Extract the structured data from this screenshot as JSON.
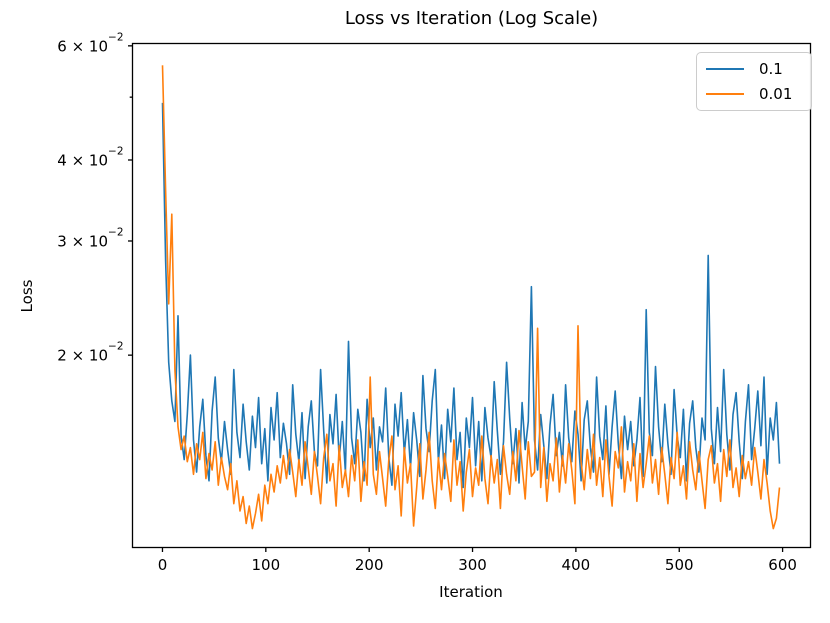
{
  "chart_data": {
    "type": "line",
    "title": "Loss vs Iteration (Log Scale)",
    "xlabel": "Iteration",
    "ylabel": "Loss",
    "yscale": "log",
    "grid": false,
    "legend_position": "upper right",
    "xlim": [
      -29,
      627
    ],
    "ylim": [
      0.0101,
      0.0605
    ],
    "xticks": [
      {
        "value": 0,
        "label": "0"
      },
      {
        "value": 100,
        "label": "100"
      },
      {
        "value": 200,
        "label": "200"
      },
      {
        "value": 300,
        "label": "300"
      },
      {
        "value": 400,
        "label": "400"
      },
      {
        "value": 500,
        "label": "500"
      },
      {
        "value": 600,
        "label": "600"
      }
    ],
    "yticks": [
      {
        "value": 0.06,
        "coeff": "6",
        "base": "10",
        "exp": "−2"
      },
      {
        "value": 0.04,
        "coeff": "4",
        "base": "10",
        "exp": "−2"
      },
      {
        "value": 0.03,
        "coeff": "3",
        "base": "10",
        "exp": "−2"
      },
      {
        "value": 0.02,
        "coeff": "2",
        "base": "10",
        "exp": "−2"
      }
    ],
    "y_minor_ticks": [
      0.05
    ],
    "x_start": 0,
    "x_step": 3,
    "series": [
      {
        "name": "0.1",
        "color": "#1f77b4",
        "values": [
          0.049,
          0.028,
          0.0195,
          0.017,
          0.0158,
          0.023,
          0.015,
          0.0138,
          0.0162,
          0.02,
          0.0148,
          0.0132,
          0.0155,
          0.0171,
          0.014,
          0.0128,
          0.0164,
          0.0185,
          0.0149,
          0.0137,
          0.0158,
          0.0143,
          0.0131,
          0.019,
          0.0152,
          0.0139,
          0.0168,
          0.0147,
          0.0133,
          0.0161,
          0.0144,
          0.0172,
          0.0136,
          0.0154,
          0.0128,
          0.0166,
          0.0148,
          0.0175,
          0.0139,
          0.0157,
          0.0146,
          0.0131,
          0.018,
          0.0151,
          0.0137,
          0.0163,
          0.0129,
          0.0155,
          0.017,
          0.0142,
          0.0135,
          0.019,
          0.0153,
          0.0127,
          0.0162,
          0.0146,
          0.0174,
          0.0138,
          0.0158,
          0.0132,
          0.021,
          0.0149,
          0.0136,
          0.0165,
          0.0152,
          0.0128,
          0.0171,
          0.0144,
          0.016,
          0.0133,
          0.0155,
          0.0147,
          0.0178,
          0.0139,
          0.0126,
          0.0168,
          0.015,
          0.0175,
          0.0141,
          0.0159,
          0.0134,
          0.0163,
          0.0148,
          0.013,
          0.0186,
          0.0154,
          0.0142,
          0.017,
          0.019,
          0.0137,
          0.0156,
          0.0129,
          0.0165,
          0.0147,
          0.0178,
          0.0138,
          0.0152,
          0.0125,
          0.016,
          0.0144,
          0.0172,
          0.0135,
          0.0158,
          0.0128,
          0.0166,
          0.0149,
          0.0139,
          0.0182,
          0.0153,
          0.0131,
          0.0147,
          0.0195,
          0.016,
          0.0136,
          0.0154,
          0.0127,
          0.0169,
          0.0143,
          0.0158,
          0.0255,
          0.0148,
          0.0133,
          0.0162,
          0.0145,
          0.0129,
          0.0156,
          0.0174,
          0.014,
          0.0152,
          0.0135,
          0.018,
          0.0149,
          0.0137,
          0.0164,
          0.0151,
          0.0128,
          0.0159,
          0.017,
          0.0144,
          0.0132,
          0.0185,
          0.015,
          0.0138,
          0.0167,
          0.0131,
          0.0155,
          0.0176,
          0.0146,
          0.0129,
          0.0161,
          0.0143,
          0.0158,
          0.0135,
          0.0148,
          0.0172,
          0.013,
          0.0235,
          0.0152,
          0.014,
          0.0192,
          0.0155,
          0.0137,
          0.0168,
          0.0146,
          0.0131,
          0.0177,
          0.015,
          0.0139,
          0.0165,
          0.0128,
          0.0157,
          0.017,
          0.0144,
          0.0132,
          0.016,
          0.0148,
          0.0285,
          0.0154,
          0.0136,
          0.0166,
          0.0142,
          0.019,
          0.0151,
          0.0133,
          0.0162,
          0.0175,
          0.0147,
          0.0129,
          0.0158,
          0.018,
          0.0138,
          0.0154,
          0.0176,
          0.0145,
          0.0185,
          0.0131,
          0.016,
          0.0148,
          0.0169,
          0.0136
        ]
      },
      {
        "name": "0.01",
        "color": "#ff7f0e",
        "values": [
          0.056,
          0.036,
          0.024,
          0.033,
          0.019,
          0.0155,
          0.0143,
          0.015,
          0.0137,
          0.0144,
          0.0131,
          0.0146,
          0.0138,
          0.0152,
          0.0129,
          0.0141,
          0.0133,
          0.0147,
          0.0126,
          0.0139,
          0.013,
          0.0124,
          0.0136,
          0.0118,
          0.0128,
          0.0115,
          0.0121,
          0.011,
          0.0117,
          0.0108,
          0.0114,
          0.0122,
          0.0111,
          0.0126,
          0.0118,
          0.0131,
          0.0123,
          0.0135,
          0.0127,
          0.014,
          0.0129,
          0.0143,
          0.0132,
          0.0121,
          0.0138,
          0.0126,
          0.0147,
          0.0134,
          0.0122,
          0.0142,
          0.013,
          0.0118,
          0.0139,
          0.0151,
          0.0128,
          0.0136,
          0.0117,
          0.0145,
          0.0125,
          0.0133,
          0.0121,
          0.014,
          0.0128,
          0.0148,
          0.0119,
          0.0137,
          0.0126,
          0.0185,
          0.0131,
          0.0122,
          0.0142,
          0.0129,
          0.0117,
          0.0138,
          0.015,
          0.0124,
          0.0135,
          0.0113,
          0.0144,
          0.0127,
          0.0136,
          0.0109,
          0.0125,
          0.0146,
          0.012,
          0.0133,
          0.0152,
          0.0128,
          0.0116,
          0.0139,
          0.0124,
          0.0141,
          0.013,
          0.0119,
          0.0148,
          0.0126,
          0.0137,
          0.0115,
          0.0132,
          0.0143,
          0.0121,
          0.0134,
          0.0126,
          0.015,
          0.0129,
          0.0118,
          0.014,
          0.0127,
          0.0138,
          0.0116,
          0.0145,
          0.0131,
          0.0122,
          0.0142,
          0.0128,
          0.0153,
          0.0135,
          0.012,
          0.0147,
          0.013,
          0.0132,
          0.022,
          0.0125,
          0.0144,
          0.0119,
          0.0136,
          0.0128,
          0.0149,
          0.0123,
          0.014,
          0.0127,
          0.0146,
          0.0133,
          0.0118,
          0.0222,
          0.0137,
          0.0124,
          0.0143,
          0.0129,
          0.0151,
          0.0126,
          0.0139,
          0.0121,
          0.0148,
          0.013,
          0.0117,
          0.0142,
          0.0134,
          0.0155,
          0.0123,
          0.0137,
          0.0128,
          0.0146,
          0.0119,
          0.0141,
          0.0125,
          0.0136,
          0.015,
          0.0127,
          0.0138,
          0.0122,
          0.0144,
          0.0131,
          0.0118,
          0.0139,
          0.0129,
          0.0152,
          0.0126,
          0.0135,
          0.012,
          0.0147,
          0.0133,
          0.0124,
          0.0142,
          0.0128,
          0.0116,
          0.0138,
          0.0145,
          0.0127,
          0.0136,
          0.0119,
          0.0143,
          0.013,
          0.0148,
          0.0125,
          0.0134,
          0.0121,
          0.014,
          0.0129,
          0.0137,
          0.0126,
          0.0144,
          0.0132,
          0.012,
          0.0138,
          0.0127,
          0.0115,
          0.0108,
          0.0112,
          0.0125
        ]
      }
    ]
  }
}
